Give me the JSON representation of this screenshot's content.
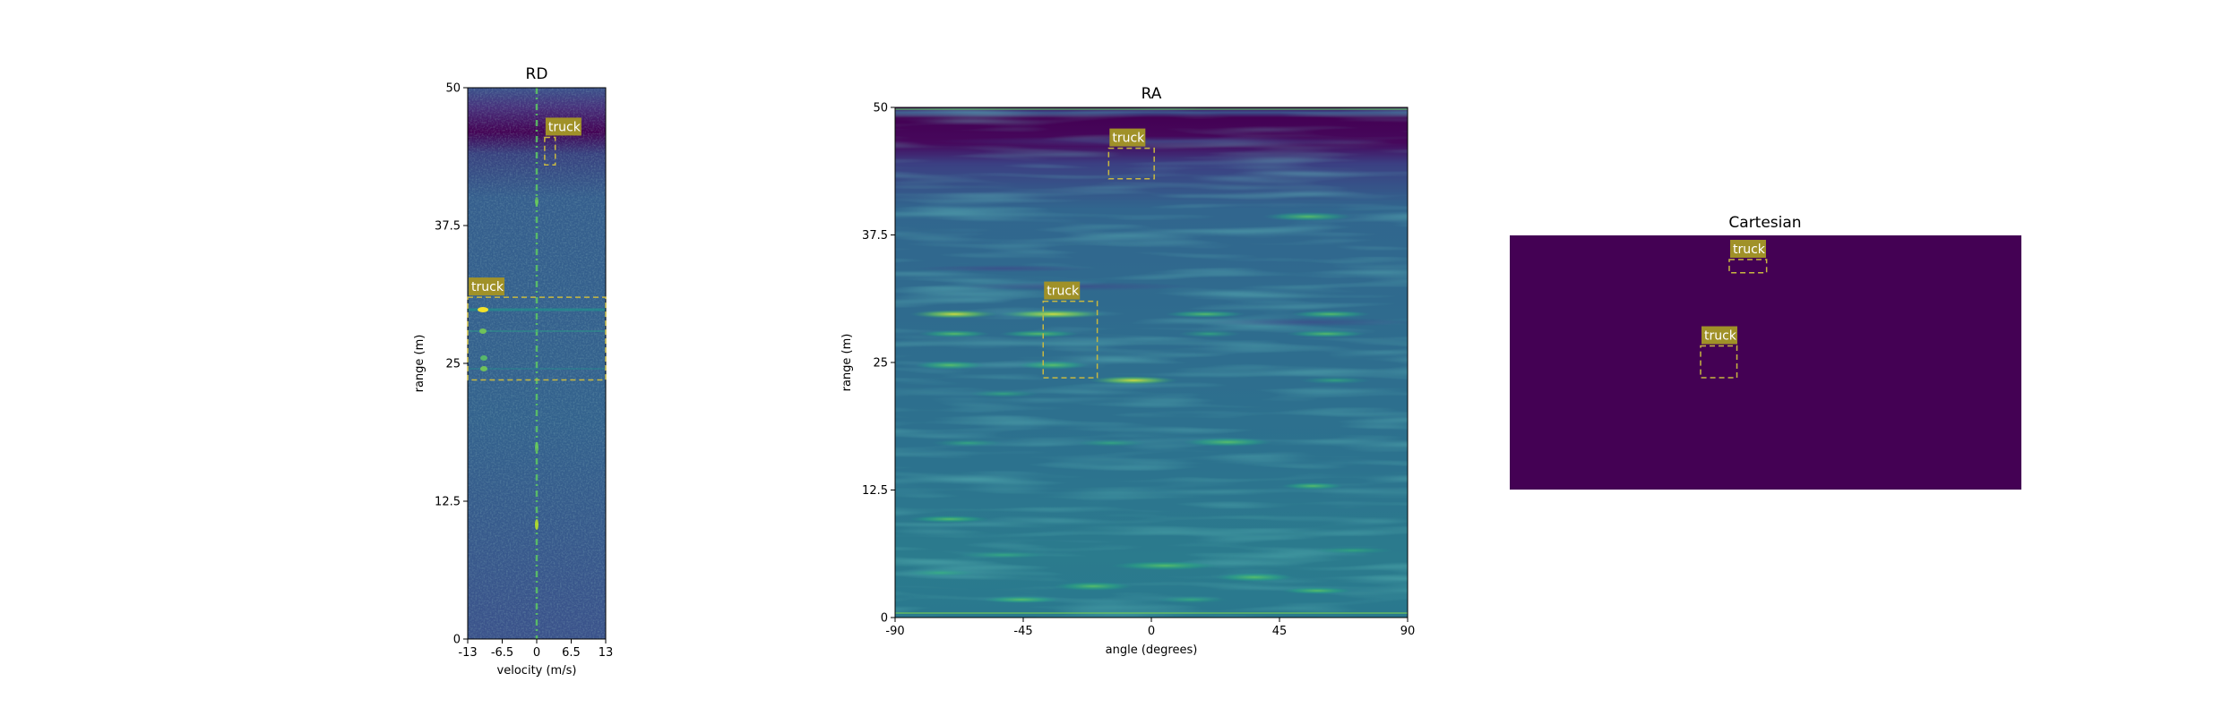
{
  "chart_data": [
    {
      "type": "heatmap",
      "title": "RD",
      "xlabel": "velocity (m/s)",
      "ylabel": "range (m)",
      "xlim": [
        -13,
        13
      ],
      "ylim": [
        0,
        50
      ],
      "x_ticks": [
        "-13",
        "-6.5",
        "0",
        "6.5",
        "13"
      ],
      "y_ticks": [
        "0",
        "12.5",
        "25",
        "37.5",
        "50"
      ],
      "colormap": "viridis",
      "boxes": [
        {
          "label": "truck",
          "x": [
            1.5,
            3.5
          ],
          "y": [
            43,
            45.5
          ]
        },
        {
          "label": "truck",
          "x": [
            -13,
            13
          ],
          "y": [
            23.5,
            31
          ]
        }
      ]
    },
    {
      "type": "heatmap",
      "title": "RA",
      "xlabel": "angle (degrees)",
      "ylabel": "range (m)",
      "xlim": [
        -90,
        90
      ],
      "ylim": [
        0,
        50
      ],
      "x_ticks": [
        "-90",
        "-45",
        "0",
        "45",
        "90"
      ],
      "y_ticks": [
        "0",
        "12.5",
        "25",
        "37.5",
        "50"
      ],
      "colormap": "viridis",
      "boxes": [
        {
          "label": "truck",
          "x": [
            -15,
            1
          ],
          "y": [
            43,
            46
          ]
        },
        {
          "label": "truck",
          "x": [
            -38,
            -19
          ],
          "y": [
            23.5,
            31
          ]
        }
      ]
    },
    {
      "type": "heatmap",
      "title": "Cartesian",
      "boxes": [
        {
          "label": "truck",
          "x": [
            0.429,
            0.502
          ],
          "y": [
            0.853,
            0.905
          ]
        },
        {
          "label": "truck",
          "x": [
            0.373,
            0.444
          ],
          "y": [
            0.44,
            0.565
          ]
        }
      ]
    }
  ],
  "colors": {
    "viridis_dark": "#440154",
    "viridis_mid": "#3b528b",
    "viridis_teal": "#21918c",
    "viridis_green": "#5ec962",
    "viridis_yellow": "#fde725",
    "box_stroke": "#c8b840",
    "label_bg": "#a09128"
  }
}
